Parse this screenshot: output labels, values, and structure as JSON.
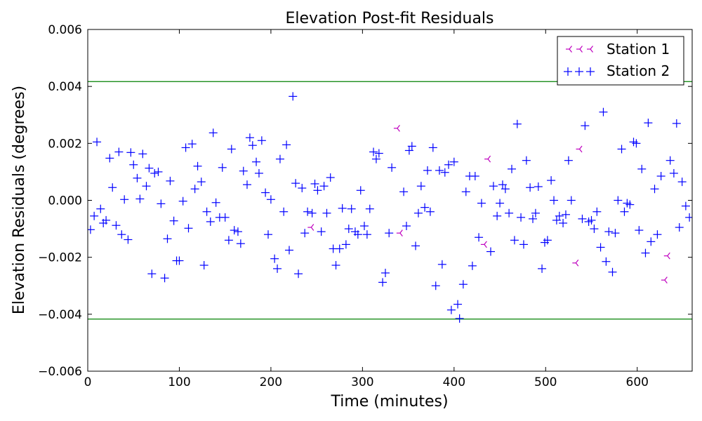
{
  "chart_data": {
    "type": "scatter",
    "title": "Elevation Post-fit Residuals",
    "xlabel": "Time (minutes)",
    "ylabel": "Elevation Residuals (degrees)",
    "xlim": [
      0,
      660
    ],
    "ylim": [
      -0.006,
      0.006
    ],
    "xticks": [
      0,
      100,
      200,
      300,
      400,
      500,
      600
    ],
    "yticks": [
      -0.006,
      -0.004,
      -0.002,
      0.0,
      0.002,
      0.004,
      0.006
    ],
    "ytick_labels": [
      "−0.006",
      "−0.004",
      "−0.002",
      "0.000",
      "0.002",
      "0.004",
      "0.006"
    ],
    "hlines": {
      "values": [
        0.00417,
        -0.00417
      ],
      "color": "#008000"
    },
    "legend": {
      "position": "top-right"
    },
    "grid": false,
    "series": [
      {
        "name": "Station 1",
        "marker": "tri_left",
        "color": "#bf00bf",
        "points": [
          [
            244,
            -0.00095
          ],
          [
            338,
            0.00253
          ],
          [
            341,
            -0.00115
          ],
          [
            433,
            -0.00155
          ],
          [
            437,
            0.00145
          ],
          [
            533,
            -0.0022
          ],
          [
            537,
            0.0018
          ],
          [
            630,
            -0.0028
          ],
          [
            633,
            -0.00195
          ]
        ]
      },
      {
        "name": "Station 2",
        "marker": "plus",
        "color": "#0000ff",
        "points": [
          [
            3,
            -0.00103
          ],
          [
            7,
            -0.00055
          ],
          [
            10,
            0.00205
          ],
          [
            14,
            -0.0003
          ],
          [
            17,
            -0.0008
          ],
          [
            20,
            -0.0007
          ],
          [
            24,
            0.00148
          ],
          [
            27,
            0.00045
          ],
          [
            31,
            -0.00088
          ],
          [
            34,
            0.0017
          ],
          [
            37,
            -0.0012
          ],
          [
            40,
            3e-05
          ],
          [
            44,
            -0.00138
          ],
          [
            47,
            0.00168
          ],
          [
            50,
            0.00125
          ],
          [
            54,
            0.00078
          ],
          [
            57,
            5e-05
          ],
          [
            60,
            0.00163
          ],
          [
            64,
            0.0005
          ],
          [
            67,
            0.00113
          ],
          [
            70,
            -0.00258
          ],
          [
            73,
            0.00095
          ],
          [
            77,
            0.001
          ],
          [
            80,
            -0.00012
          ],
          [
            84,
            -0.00273
          ],
          [
            87,
            -0.00135
          ],
          [
            90,
            0.00068
          ],
          [
            94,
            -0.00072
          ],
          [
            97,
            -0.00212
          ],
          [
            100,
            -0.00212
          ],
          [
            104,
            -3e-05
          ],
          [
            107,
            0.00185
          ],
          [
            110,
            -0.00098
          ],
          [
            114,
            0.00198
          ],
          [
            117,
            0.0004
          ],
          [
            120,
            0.0012
          ],
          [
            124,
            0.00065
          ],
          [
            127,
            -0.00228
          ],
          [
            130,
            -0.0004
          ],
          [
            134,
            -0.00075
          ],
          [
            137,
            0.00237
          ],
          [
            140,
            -8e-05
          ],
          [
            144,
            -0.0006
          ],
          [
            147,
            0.00115
          ],
          [
            150,
            -0.0006
          ],
          [
            154,
            -0.0014
          ],
          [
            157,
            0.0018
          ],
          [
            160,
            -0.00105
          ],
          [
            164,
            -0.0011
          ],
          [
            167,
            -0.00152
          ],
          [
            170,
            0.00103
          ],
          [
            174,
            0.00055
          ],
          [
            177,
            0.0022
          ],
          [
            180,
            0.00193
          ],
          [
            184,
            0.00135
          ],
          [
            187,
            0.00095
          ],
          [
            190,
            0.0021
          ],
          [
            194,
            0.00027
          ],
          [
            197,
            -0.0012
          ],
          [
            200,
            3e-05
          ],
          [
            204,
            -0.00205
          ],
          [
            207,
            -0.0024
          ],
          [
            210,
            0.00145
          ],
          [
            214,
            -0.0004
          ],
          [
            217,
            0.00195
          ],
          [
            220,
            -0.00175
          ],
          [
            224,
            0.00365
          ],
          [
            227,
            0.0006
          ],
          [
            230,
            -0.00258
          ],
          [
            234,
            0.00043
          ],
          [
            237,
            -0.00115
          ],
          [
            240,
            -0.0004
          ],
          [
            245,
            -0.00045
          ],
          [
            248,
            0.00058
          ],
          [
            251,
            0.00035
          ],
          [
            255,
            -0.0011
          ],
          [
            258,
            0.0005
          ],
          [
            261,
            -0.00045
          ],
          [
            265,
            0.0008
          ],
          [
            268,
            -0.0017
          ],
          [
            271,
            -0.00228
          ],
          [
            275,
            -0.0017
          ],
          [
            278,
            -0.00028
          ],
          [
            282,
            -0.00155
          ],
          [
            285,
            -0.001
          ],
          [
            288,
            -0.0003
          ],
          [
            292,
            -0.0011
          ],
          [
            295,
            -0.0012
          ],
          [
            298,
            0.00035
          ],
          [
            302,
            -0.0009
          ],
          [
            305,
            -0.0012
          ],
          [
            308,
            -0.0003
          ],
          [
            312,
            0.0017
          ],
          [
            315,
            0.00145
          ],
          [
            318,
            0.00165
          ],
          [
            322,
            -0.00288
          ],
          [
            325,
            -0.00255
          ],
          [
            329,
            -0.00115
          ],
          [
            332,
            0.00115
          ],
          [
            345,
            0.0003
          ],
          [
            348,
            -0.0009
          ],
          [
            351,
            0.00175
          ],
          [
            354,
            0.0019
          ],
          [
            358,
            -0.0016
          ],
          [
            361,
            -0.00045
          ],
          [
            364,
            0.0005
          ],
          [
            368,
            -0.00025
          ],
          [
            371,
            0.00105
          ],
          [
            374,
            -0.0004
          ],
          [
            377,
            0.00185
          ],
          [
            380,
            -0.003
          ],
          [
            384,
            0.00105
          ],
          [
            387,
            -0.00225
          ],
          [
            390,
            0.00098
          ],
          [
            394,
            0.00125
          ],
          [
            397,
            -0.00385
          ],
          [
            400,
            0.00135
          ],
          [
            404,
            -0.00365
          ],
          [
            406,
            -0.00415
          ],
          [
            410,
            -0.00295
          ],
          [
            413,
            0.0003
          ],
          [
            417,
            0.00085
          ],
          [
            420,
            -0.0023
          ],
          [
            423,
            0.00085
          ],
          [
            427,
            -0.0013
          ],
          [
            430,
            -0.0001
          ],
          [
            440,
            -0.0018
          ],
          [
            443,
            0.0005
          ],
          [
            447,
            -0.00055
          ],
          [
            450,
            -0.0001
          ],
          [
            453,
            0.00055
          ],
          [
            456,
            0.0004
          ],
          [
            460,
            -0.00045
          ],
          [
            463,
            0.0011
          ],
          [
            466,
            -0.0014
          ],
          [
            469,
            0.00268
          ],
          [
            473,
            -0.0006
          ],
          [
            476,
            -0.00155
          ],
          [
            479,
            0.0014
          ],
          [
            483,
            0.00045
          ],
          [
            486,
            -0.00065
          ],
          [
            489,
            -0.00045
          ],
          [
            492,
            0.00048
          ],
          [
            496,
            -0.0024
          ],
          [
            499,
            -0.00148
          ],
          [
            502,
            -0.0014
          ],
          [
            506,
            0.0007
          ],
          [
            509,
            0.0
          ],
          [
            512,
            -0.0007
          ],
          [
            515,
            -0.00055
          ],
          [
            519,
            -0.0008
          ],
          [
            522,
            -0.0005
          ],
          [
            525,
            0.0014
          ],
          [
            528,
            0.0
          ],
          [
            540,
            -0.00065
          ],
          [
            543,
            0.00262
          ],
          [
            547,
            -0.00075
          ],
          [
            550,
            -0.0007
          ],
          [
            553,
            -0.001
          ],
          [
            556,
            -0.0004
          ],
          [
            560,
            -0.00165
          ],
          [
            563,
            0.0031
          ],
          [
            566,
            -0.00215
          ],
          [
            569,
            -0.0011
          ],
          [
            573,
            -0.00252
          ],
          [
            576,
            -0.00115
          ],
          [
            579,
            0.0
          ],
          [
            583,
            0.0018
          ],
          [
            586,
            -0.0004
          ],
          [
            589,
            -0.0001
          ],
          [
            592,
            -0.00015
          ],
          [
            596,
            0.00205
          ],
          [
            599,
            0.002
          ],
          [
            602,
            -0.00105
          ],
          [
            605,
            0.0011
          ],
          [
            609,
            -0.00185
          ],
          [
            612,
            0.00272
          ],
          [
            615,
            -0.00145
          ],
          [
            619,
            0.0004
          ],
          [
            622,
            -0.0012
          ],
          [
            626,
            0.00085
          ],
          [
            636,
            0.0014
          ],
          [
            640,
            0.00095
          ],
          [
            643,
            0.0027
          ],
          [
            646,
            -0.00095
          ],
          [
            649,
            0.00065
          ],
          [
            653,
            -0.0002
          ],
          [
            657,
            -0.0006
          ]
        ]
      }
    ]
  }
}
